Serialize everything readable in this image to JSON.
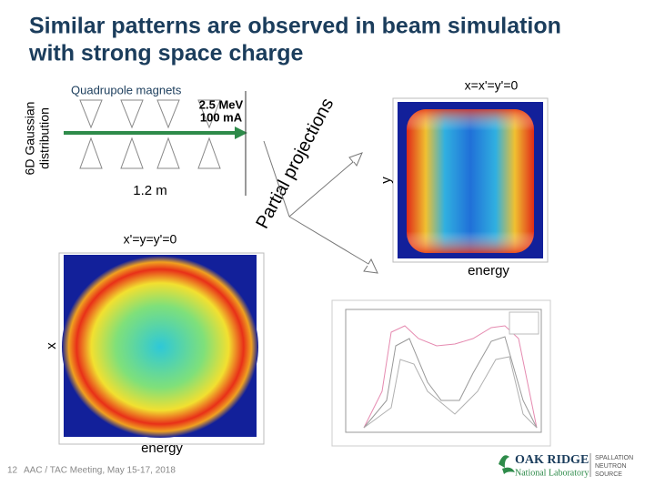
{
  "title": [
    "Similar patterns are observed in beam simulation",
    "with strong space charge"
  ],
  "lattice": {
    "label": "Quadrupole magnets",
    "beam": [
      "2.5 MeV",
      "100 mA"
    ],
    "length": "1.2 m",
    "source": [
      "6D Gaussian",
      "distribution"
    ]
  },
  "projections_label": "Partial projections",
  "top_plot": {
    "title": "x=x'=y'=0",
    "y_label": "y",
    "x_label": "energy"
  },
  "bottom_plot": {
    "title": "x'=y=y'=0",
    "y_label": "x",
    "x_label": "energy"
  },
  "footer": {
    "page": "12",
    "meeting": "AAC / TAC Meeting, May 15-17, 2018"
  },
  "logo": {
    "name": "OAK RIDGE",
    "sub": "National Laboratory",
    "partner": [
      "SPALLATION",
      "NEUTRON",
      "SOURCE"
    ]
  }
}
